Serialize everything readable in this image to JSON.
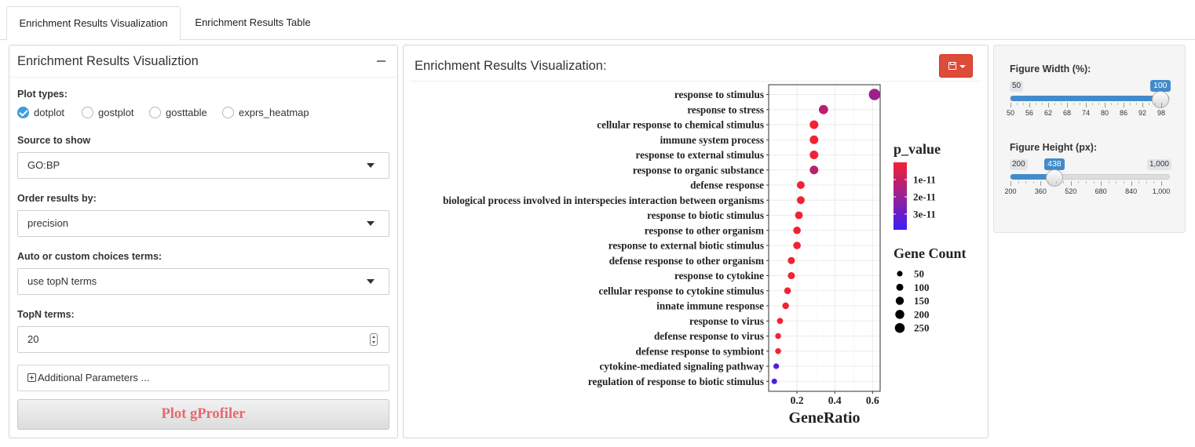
{
  "tabs": [
    {
      "label": "Enrichment Results Visualization",
      "active": true
    },
    {
      "label": "Enrichment Results Table",
      "active": false
    }
  ],
  "left_panel": {
    "title": "Enrichment Results Visualiztion",
    "plot_types_label": "Plot types:",
    "plot_types": [
      {
        "label": "dotplot",
        "checked": true
      },
      {
        "label": "gostplot",
        "checked": false
      },
      {
        "label": "gosttable",
        "checked": false
      },
      {
        "label": "exprs_heatmap",
        "checked": false
      }
    ],
    "source_label": "Source to show",
    "source_value": "GO:BP",
    "order_label": "Order results by:",
    "order_value": "precision",
    "choices_label": "Auto or custom choices terms:",
    "choices_value": "use topN terms",
    "topn_label": "TopN terms:",
    "topn_value": "20",
    "additional_label": "Additional Parameters ...",
    "plot_button_label": "Plot gProfiler"
  },
  "center_panel": {
    "title": "Enrichment Results Visualization:",
    "save_icon": "floppy-disk-icon",
    "save_button_color": "#dd4b39"
  },
  "right_panel": {
    "width_slider": {
      "label": "Figure Width (%):",
      "min_label": "50",
      "max_label": "100",
      "value_label": "100",
      "min": 50,
      "max": 100,
      "value": 100,
      "tick_labels": [
        "50",
        "56",
        "62",
        "68",
        "74",
        "80",
        "86",
        "92",
        "98"
      ]
    },
    "height_slider": {
      "label": "Figure Height (px):",
      "min_label": "200",
      "max_label": "1,000",
      "value_label": "438",
      "min": 200,
      "max": 1000,
      "value": 438,
      "tick_labels": [
        "200",
        "360",
        "520",
        "680",
        "840",
        "1,000"
      ]
    }
  },
  "chart_data": {
    "type": "scatter",
    "xlabel": "GeneRatio",
    "ylabel": "",
    "xlim": [
      0.05,
      0.64
    ],
    "x_ticks": [
      "0.2",
      "0.4",
      "0.6"
    ],
    "x_tick_values": [
      0.2,
      0.4,
      0.6
    ],
    "categories": [
      "response to stimulus",
      "response to stress",
      "cellular response to chemical stimulus",
      "immune system process",
      "response to external stimulus",
      "response to organic substance",
      "defense response",
      "biological process involved in interspecies interaction between organisms",
      "response to biotic stimulus",
      "response to other organism",
      "response to external biotic stimulus",
      "defense response to other organism",
      "response to cytokine",
      "cellular response to cytokine stimulus",
      "innate immune response",
      "response to virus",
      "defense response to virus",
      "defense response to symbiont",
      "cytokine-mediated signaling pathway",
      "regulation of response to biotic stimulus"
    ],
    "gene_ratio": [
      0.61,
      0.34,
      0.29,
      0.29,
      0.29,
      0.29,
      0.22,
      0.22,
      0.21,
      0.2,
      0.2,
      0.17,
      0.17,
      0.15,
      0.14,
      0.11,
      0.1,
      0.1,
      0.09,
      0.08
    ],
    "gene_count": [
      280,
      170,
      145,
      140,
      140,
      140,
      110,
      110,
      105,
      100,
      100,
      85,
      85,
      75,
      70,
      55,
      50,
      50,
      45,
      40
    ],
    "p_value": [
      2e-11,
      1.3e-11,
      5e-13,
      5e-13,
      5e-13,
      1.3e-11,
      5e-13,
      5e-13,
      5e-13,
      5e-13,
      5e-13,
      5e-13,
      5e-13,
      5e-13,
      5e-13,
      5e-13,
      5e-13,
      5e-13,
      3.8e-11,
      3.8e-11
    ],
    "color_legend": {
      "title": "p_value",
      "labels": [
        "1e-11",
        "2e-11",
        "3e-11"
      ],
      "low_color": "#f22233",
      "high_color": "#3d1df5"
    },
    "size_legend": {
      "title": "Gene Count",
      "labels": [
        "50",
        "100",
        "150",
        "200",
        "250"
      ],
      "values": [
        50,
        100,
        150,
        200,
        250
      ]
    },
    "grid": true
  }
}
